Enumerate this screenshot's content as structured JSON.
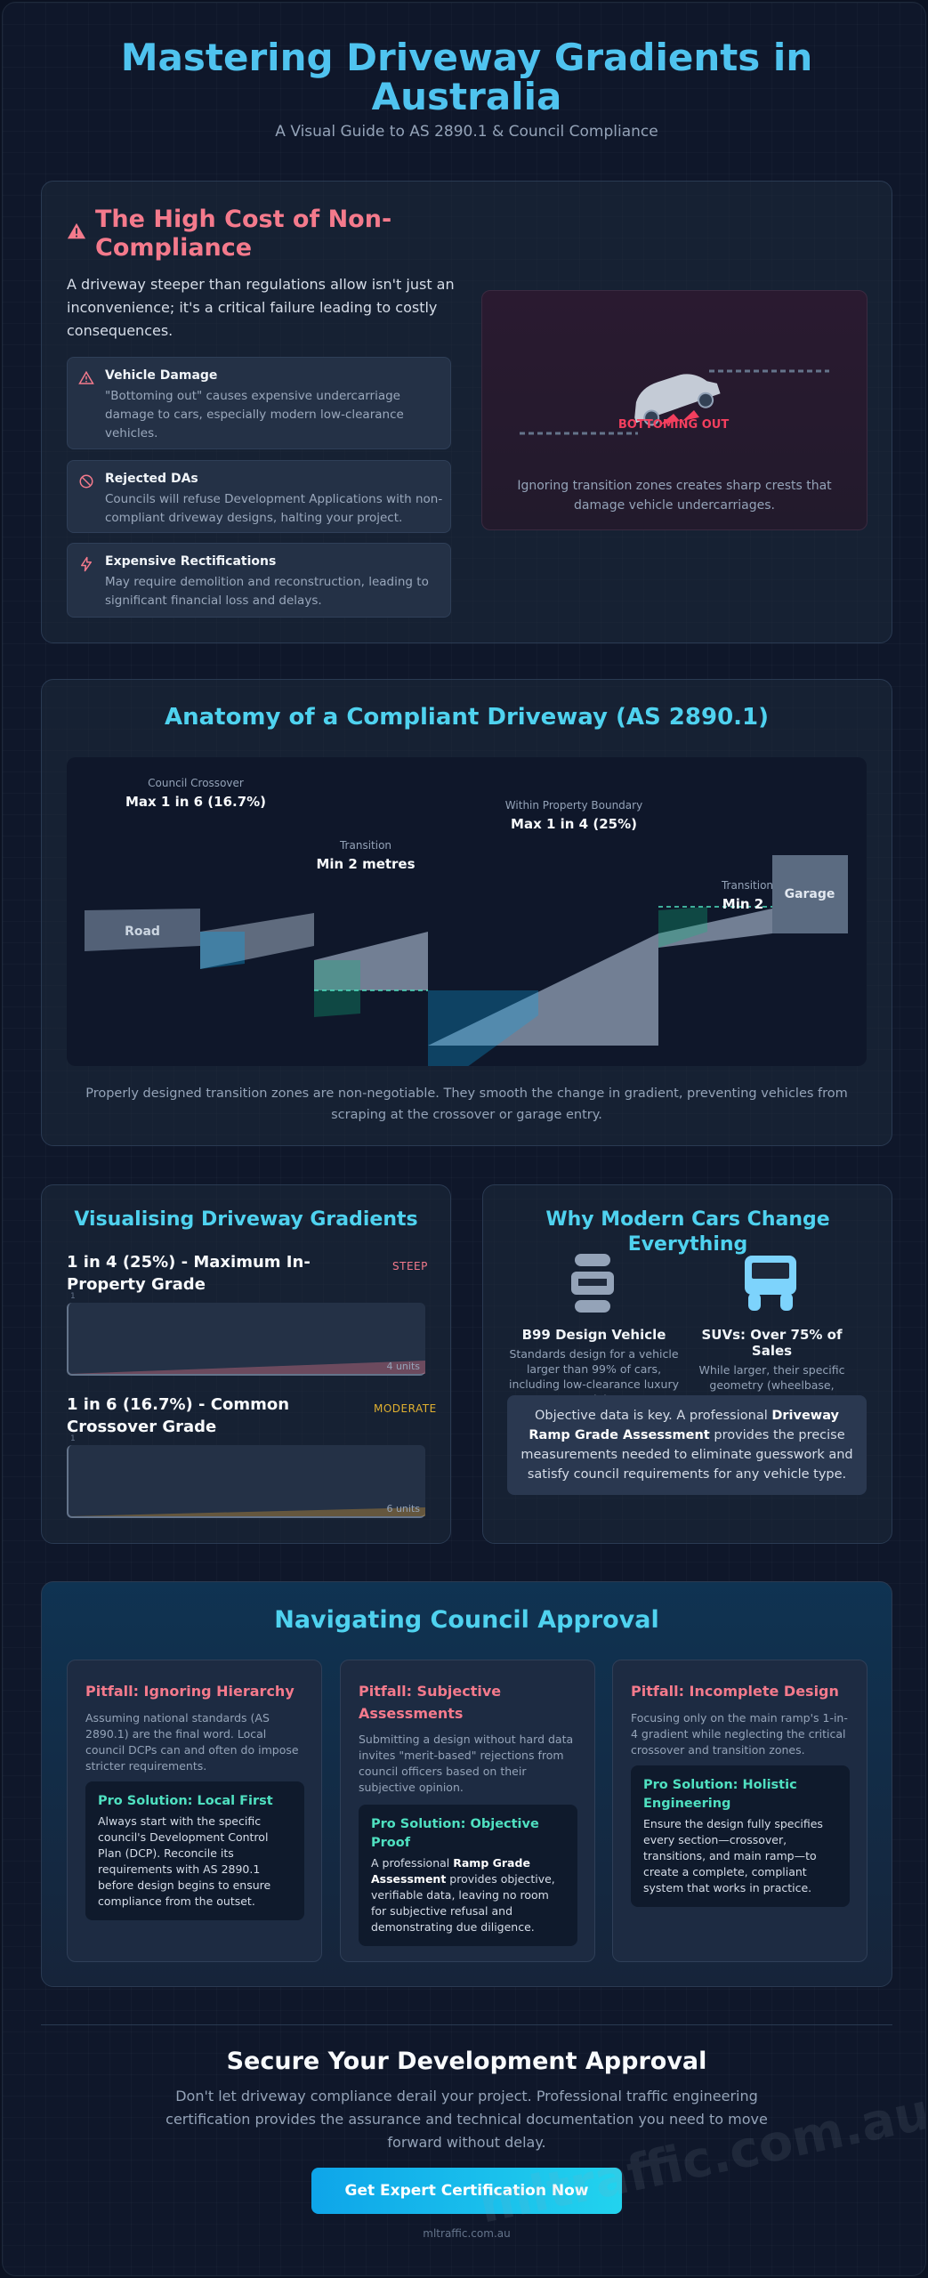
{
  "header": {
    "title": "Mastering Driveway Gradients in Australia",
    "subtitle": "A Visual Guide to AS 2890.1 & Council Compliance"
  },
  "cost": {
    "title": "The High Cost of Non-Compliance",
    "intro": "A driveway steeper than regulations allow isn't just an inconvenience; it's a critical failure leading to costly consequences.",
    "items": [
      {
        "title": "Vehicle Damage",
        "desc": "\"Bottoming out\" causes expensive undercarriage damage to cars, especially modern low-clearance vehicles.",
        "icon": "warning-icon"
      },
      {
        "title": "Rejected DAs",
        "desc": "Councils will refuse Development Applications with non-compliant driveway designs, halting your project.",
        "icon": "ban-icon"
      },
      {
        "title": "Expensive Rectifications",
        "desc": "May require demolition and reconstruction, leading to significant financial loss and delays.",
        "icon": "lightning-icon"
      }
    ],
    "visual_label": "BOTTOMING OUT",
    "visual_caption": "Ignoring transition zones creates sharp crests that damage vehicle undercarriages."
  },
  "anatomy": {
    "title": "Anatomy of a Compliant Driveway (AS 2890.1)",
    "labels": {
      "crossover_small": "Council Crossover",
      "crossover_big": "Max 1 in 6 (16.7%)",
      "transition1_small": "Transition",
      "transition1_big": "Min 2 metres",
      "property_small": "Within Property Boundary",
      "property_big": "Max 1 in 4 (25%)",
      "transition2_small": "Transition",
      "transition2_big": "Min 2",
      "road": "Road",
      "garage": "Garage"
    },
    "caption": "Properly designed transition zones are non-negotiable. They smooth the change in gradient, preventing vehicles from scraping at the crossover or garage entry."
  },
  "gradients": {
    "title": "Visualising Driveway Gradients",
    "items": [
      {
        "label": "1 in 4 (25%) - Maximum In-Property Grade",
        "tag": "STEEP",
        "axis": "1",
        "units": "4 units",
        "color": "#f47a8c",
        "rise": 1,
        "run": 4
      },
      {
        "label": "1 in 6 (16.7%) - Common Crossover Grade",
        "tag": "MODERATE",
        "axis": "1",
        "units": "6 units",
        "color": "#e0a030",
        "rise": 1,
        "run": 6
      }
    ]
  },
  "cars": {
    "title": "Why Modern Cars Change Everything",
    "b99_title": "B99 Design Vehicle",
    "b99_desc": "Standards design for a vehicle larger than 99% of cars, including low-clearance luxury models.",
    "suv_title": "SUVs: Over 75% of Sales",
    "suv_desc": "While larger, their specific geometry (wheelbase, overhangs) still requires precise gradient calculations.",
    "note_pre": "Objective data is key. A professional ",
    "note_bold": "Driveway Ramp Grade Assessment",
    "note_post": " provides the precise measurements needed to eliminate guesswork and satisfy council requirements for any vehicle type."
  },
  "council": {
    "title": "Navigating Council Approval",
    "pitfalls": [
      {
        "title": "Pitfall: Ignoring Hierarchy",
        "desc": "Assuming national standards (AS 2890.1) are the final word. Local council DCPs can and often do impose stricter requirements.",
        "sol_title": "Pro Solution: Local First",
        "sol_desc": "Always start with the specific council's Development Control Plan (DCP). Reconcile its requirements with AS 2890.1 before design begins to ensure compliance from the outset."
      },
      {
        "title": "Pitfall: Subjective Assessments",
        "desc": "Submitting a design without hard data invites \"merit-based\" rejections from council officers based on their subjective opinion.",
        "sol_title": "Pro Solution: Objective Proof",
        "sol_pre": "A professional ",
        "sol_bold": "Ramp Grade Assessment",
        "sol_post": " provides objective, verifiable data, leaving no room for subjective refusal and demonstrating due diligence."
      },
      {
        "title": "Pitfall: Incomplete Design",
        "desc": "Focusing only on the main ramp's 1-in-4 gradient while neglecting the critical crossover and transition zones.",
        "sol_title": "Pro Solution: Holistic Engineering",
        "sol_desc": "Ensure the design fully specifies every section—crossover, transitions, and main ramp—to create a complete, compliant system that works in practice."
      }
    ]
  },
  "footer": {
    "title": "Secure Your Development Approval",
    "text": "Don't let driveway compliance derail your project. Professional traffic engineering certification provides the assurance and technical documentation you need to move forward without delay.",
    "cta": "Get Expert Certification Now",
    "site": "mltraffic.com.au",
    "watermark": "mltraffic.com.au"
  }
}
